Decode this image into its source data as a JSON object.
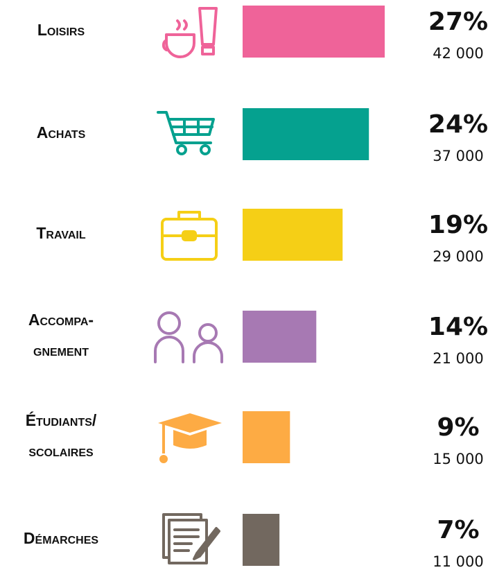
{
  "chart_data": {
    "type": "bar",
    "categories": [
      [
        "Loisirs"
      ],
      [
        "Achats"
      ],
      [
        "Travail"
      ],
      [
        "Accompa-",
        "gnement"
      ],
      [
        "Étudiants/",
        "scolaires"
      ],
      [
        "Démarches"
      ]
    ],
    "colors": [
      "#ef6399",
      "#05a18f",
      "#f5cf16",
      "#a779b3",
      "#fdab44",
      "#72685f"
    ],
    "series": [
      {
        "values": [
          27,
          24,
          19,
          14,
          9,
          7
        ],
        "value_labels": [
          "27%",
          "24%",
          "19%",
          "14%",
          "9%",
          "7%"
        ]
      },
      {
        "values": [
          42000,
          37000,
          29000,
          21000,
          15000,
          11000
        ],
        "value_labels": [
          "42 000",
          "37 000",
          "29 000",
          "21 000",
          "15 000",
          "11 000"
        ]
      }
    ]
  }
}
